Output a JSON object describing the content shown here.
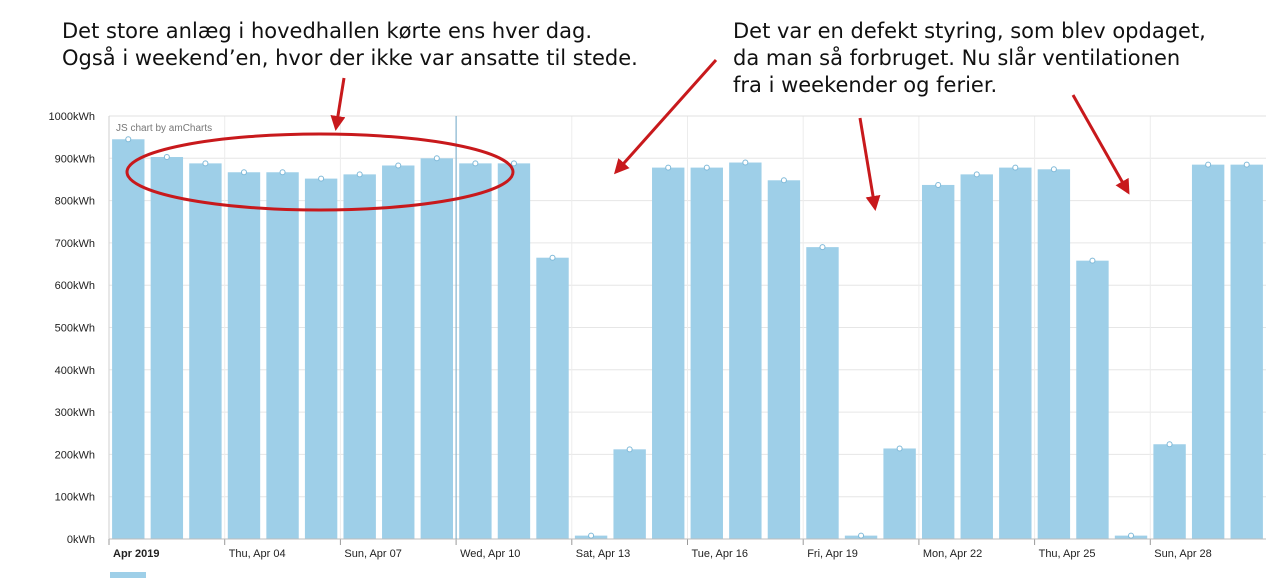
{
  "annotations": {
    "left_line1": "Det store anlæg i hovedhallen kørte ens hver dag.",
    "left_line2": "Også i weekend’en, hvor der ikke var ansatte til stede.",
    "right_line1": "Det var en defekt styring, som blev opdaget,",
    "right_line2": "da man så forbruget. Nu slår ventilationen",
    "right_line3": "fra i weekender og ferier.",
    "arrow_color": "#c8191c",
    "ellipse_color": "#c8191c"
  },
  "credit": "JS chart by amCharts",
  "chart_data": {
    "type": "bar",
    "ylim": [
      0,
      1000
    ],
    "y_ticks": [
      "0kWh",
      "100kWh",
      "200kWh",
      "300kWh",
      "400kWh",
      "500kWh",
      "600kWh",
      "700kWh",
      "800kWh",
      "900kWh",
      "1000kWh"
    ],
    "x_labels": [
      {
        "index": 0,
        "text": "Apr 2019",
        "bold": true
      },
      {
        "index": 3,
        "text": "Thu, Apr 04"
      },
      {
        "index": 6,
        "text": "Sun, Apr 07"
      },
      {
        "index": 9,
        "text": "Wed, Apr 10"
      },
      {
        "index": 12,
        "text": "Sat, Apr 13"
      },
      {
        "index": 15,
        "text": "Tue, Apr 16"
      },
      {
        "index": 18,
        "text": "Fri, Apr 19"
      },
      {
        "index": 21,
        "text": "Mon, Apr 22"
      },
      {
        "index": 24,
        "text": "Thu, Apr 25"
      },
      {
        "index": 27,
        "text": "Sun, Apr 28"
      }
    ],
    "values": [
      945,
      903,
      888,
      867,
      867,
      852,
      862,
      883,
      900,
      888,
      888,
      665,
      8,
      212,
      878,
      878,
      890,
      848,
      690,
      8,
      214,
      837,
      862,
      878,
      874,
      658,
      8,
      224,
      885,
      885
    ],
    "bar_color": "#9ecfe8",
    "grid": true,
    "legend_color": "#9ecfe8"
  }
}
